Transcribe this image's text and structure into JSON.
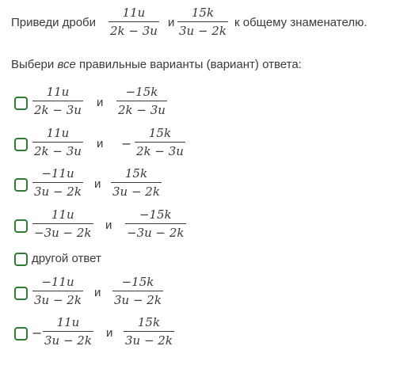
{
  "task": {
    "prompt_prefix": "Приведи дроби",
    "conj": "и",
    "prompt_suffix": "к общему знаменателю.",
    "frac1_num": "11u",
    "frac1_den": "2k − 3u",
    "frac2_num": "15k",
    "frac2_den": "3u − 2k"
  },
  "instruction": {
    "before": "Выбери",
    "emph": "все",
    "after": "правильные варианты (вариант) ответа:"
  },
  "options": [
    {
      "a_num": "11u",
      "a_den": "2k − 3u",
      "conj": "и",
      "b_num": "−15k",
      "b_den": "2k − 3u"
    },
    {
      "a_num": "11u",
      "a_den": "2k − 3u",
      "conj": "и",
      "b_sign": "−",
      "b_num": "15k",
      "b_den": "2k − 3u"
    },
    {
      "a_num": "−11u",
      "a_den": "3u − 2k",
      "conj": "и",
      "b_num": "15k",
      "b_den": "3u − 2k"
    },
    {
      "a_num": "11u",
      "a_den": "−3u − 2k",
      "conj": "и",
      "b_num": "−15k",
      "b_den": "−3u − 2k"
    },
    {
      "label": "другой ответ"
    },
    {
      "a_num": "−11u",
      "a_den": "3u − 2k",
      "conj": "и",
      "b_num": "−15k",
      "b_den": "3u − 2k"
    },
    {
      "a_sign": "−",
      "a_num": "11u",
      "a_den": "3u − 2k",
      "conj": "и",
      "b_num": "15k",
      "b_den": "3u − 2k"
    }
  ],
  "colors": {
    "checkbox_border": "#2e7d32",
    "text": "#3a3a3a"
  }
}
